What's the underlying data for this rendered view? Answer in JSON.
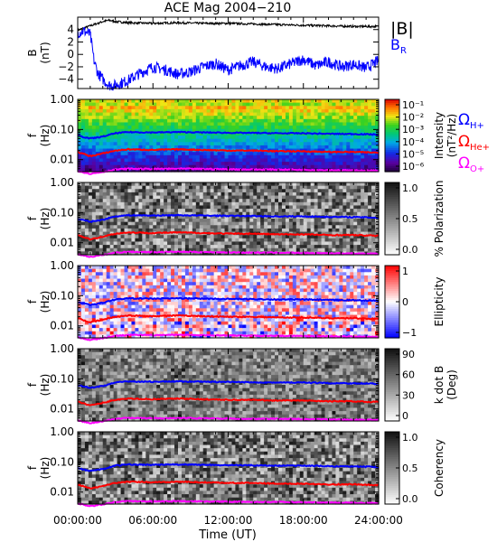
{
  "chart_data": {
    "title": "ACE Mag 2004−210",
    "xlabel": "Time (UT)",
    "x_ticks": [
      "00:00:00",
      "06:00:00",
      "12:00:00",
      "18:00:00",
      "24:00:00"
    ],
    "xlim": [
      0,
      24
    ],
    "freq_ticks": [
      "1.00",
      "0.10",
      "0.01"
    ],
    "freq_ylim": [
      0.004,
      1.0
    ],
    "freq_scale": "log",
    "gyro_lines": {
      "hours": [
        0,
        1,
        2,
        3,
        4,
        6,
        8,
        10,
        12,
        14,
        16,
        18,
        20,
        22,
        24
      ],
      "H+": [
        0.062,
        0.05,
        0.058,
        0.075,
        0.082,
        0.08,
        0.082,
        0.08,
        0.078,
        0.077,
        0.075,
        0.075,
        0.072,
        0.071,
        0.068
      ],
      "He+": [
        0.018,
        0.013,
        0.016,
        0.02,
        0.022,
        0.021,
        0.022,
        0.021,
        0.02,
        0.02,
        0.019,
        0.019,
        0.018,
        0.018,
        0.017
      ],
      "O+": [
        0.0042,
        0.0034,
        0.0039,
        0.0047,
        0.005,
        0.0049,
        0.005,
        0.0049,
        0.0048,
        0.0047,
        0.0047,
        0.0046,
        0.0045,
        0.0044,
        0.0043
      ],
      "colors": {
        "H+": "#0000ff",
        "He+": "#ff0000",
        "O+": "#ff00ff"
      }
    },
    "panels": [
      {
        "type": "line",
        "ylabel": "B",
        "yunit": "(nT)",
        "ylim": [
          -5.5,
          6
        ],
        "yticks": [
          "4",
          "2",
          "0",
          "−2",
          "−4"
        ],
        "ytick_values": [
          4,
          2,
          0,
          -2,
          -4
        ],
        "legend": [
          "|B|",
          "B"
        ],
        "legend_sub": "R",
        "series": [
          {
            "name": "|B|",
            "color": "#000000",
            "x": [
              0,
              1,
              2,
              2.5,
              3,
              4,
              6,
              8,
              10,
              12,
              14,
              16,
              18,
              20,
              22,
              24
            ],
            "y": [
              3.9,
              4.6,
              5.3,
              5.5,
              5.3,
              5.1,
              5.0,
              5.1,
              5.0,
              5.0,
              4.9,
              4.8,
              4.7,
              4.6,
              4.5,
              4.5
            ]
          },
          {
            "name": "B_R",
            "color": "#0000ff",
            "x": [
              0,
              0.5,
              1,
              1.3,
              1.6,
              2,
              2.5,
              3,
              4,
              5,
              6,
              7,
              8,
              9,
              10,
              11,
              12,
              13,
              14,
              15,
              16,
              17,
              18,
              19,
              20,
              21,
              22,
              23,
              24
            ],
            "y": [
              3.5,
              3.8,
              3.2,
              -1.0,
              -3.0,
              -4.0,
              -5.0,
              -5.0,
              -4.2,
              -3.0,
              -2.0,
              -2.5,
              -3.2,
              -2.8,
              -2.0,
              -1.5,
              -2.5,
              -1.8,
              -1.2,
              -2.0,
              -2.3,
              -1.5,
              -0.8,
              -1.8,
              -1.2,
              -2.0,
              -1.6,
              -2.2,
              -1.0
            ]
          }
        ]
      },
      {
        "type": "heatmap",
        "colorbar": "rainbow",
        "cb_label": "Intensity",
        "cb_unit": "(nT²/Hz)",
        "cb_ticks": [
          "10⁻¹",
          "10⁻²",
          "10⁻³",
          "10⁻⁴",
          "10⁻⁵",
          "10⁻⁶"
        ],
        "cb_range": [
          -6.5,
          -0.5
        ]
      },
      {
        "type": "heatmap",
        "colorbar": "gray",
        "cb_label": "% Polarization",
        "cb_ticks": [
          "1.0",
          "0.5",
          "0.0"
        ],
        "cb_range": [
          0,
          1
        ]
      },
      {
        "type": "heatmap",
        "colorbar": "bwr",
        "cb_label": "Ellipticity",
        "cb_ticks": [
          "1",
          "0",
          "−1"
        ],
        "cb_range": [
          -1,
          1
        ]
      },
      {
        "type": "heatmap",
        "colorbar": "gray",
        "cb_label": "k dot B",
        "cb_unit": "(Deg)",
        "cb_ticks": [
          "90",
          "60",
          "30",
          "0"
        ],
        "cb_range": [
          0,
          90
        ]
      },
      {
        "type": "heatmap",
        "colorbar": "gray",
        "cb_label": "Coherency",
        "cb_ticks": [
          "1.0",
          "0.5",
          "0.0"
        ],
        "cb_range": [
          0,
          1
        ]
      }
    ],
    "freq_ylabel": "f",
    "freq_yunit": "(Hz)",
    "omega_labels": [
      {
        "symbol": "Ω",
        "sub": "H+",
        "color": "#0000ff"
      },
      {
        "symbol": "Ω",
        "sub": "He+",
        "color": "#ff0000"
      },
      {
        "symbol": "Ω",
        "sub": "O+",
        "color": "#ff00ff"
      }
    ]
  }
}
